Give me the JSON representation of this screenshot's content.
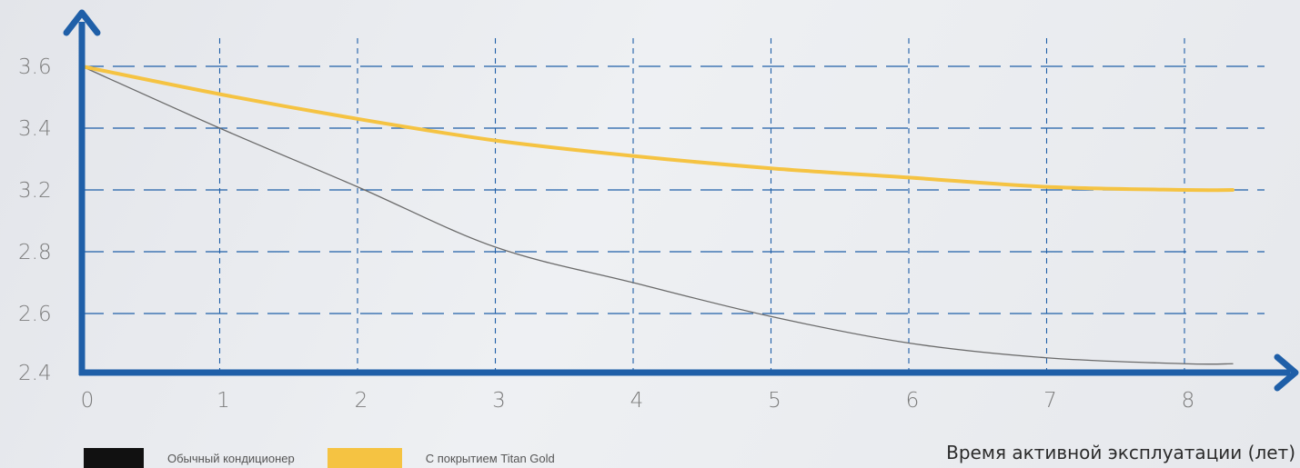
{
  "chart_data": {
    "type": "line",
    "x_ticks": [
      "0",
      "1",
      "2",
      "3",
      "4",
      "5",
      "6",
      "7",
      "8"
    ],
    "y_ticks": [
      "2.4",
      "2.6",
      "2.8",
      "3.2",
      "3.4",
      "3.6"
    ],
    "xlabel": "Время активной эксплуатации (лет)",
    "ylabel": "",
    "grid": true,
    "legend_position": "bottom-left",
    "series": [
      {
        "name": "Обычный кондиционер",
        "color": "#6a6a6a",
        "legend_color": "#111111",
        "x": [
          0,
          1,
          2,
          3,
          4,
          5,
          6,
          7,
          8,
          8.35
        ],
        "y": [
          3.6,
          3.4,
          3.21,
          2.83,
          2.7,
          2.59,
          2.5,
          2.45,
          2.43,
          2.43
        ]
      },
      {
        "name": "С покрытием Titan Gold",
        "color": "#f5c342",
        "legend_color": "#f5c342",
        "x": [
          0,
          1,
          2,
          3,
          4,
          5,
          6,
          7,
          8,
          8.35
        ],
        "y": [
          3.6,
          3.51,
          3.43,
          3.36,
          3.31,
          3.27,
          3.24,
          3.21,
          3.2,
          3.2
        ]
      }
    ],
    "axis_color": "#1f5fa8"
  }
}
